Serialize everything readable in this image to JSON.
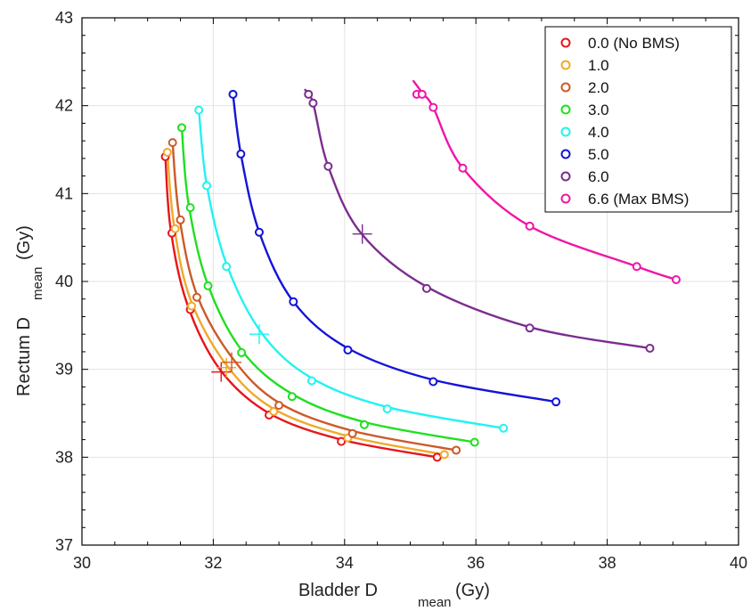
{
  "chart_data": {
    "type": "line",
    "xlabel": {
      "main": "Bladder D",
      "sub": "mean",
      "unit": "(Gy)"
    },
    "ylabel": {
      "main": "Rectum D",
      "sub": "mean",
      "unit": "(Gy)"
    },
    "xlim": [
      30,
      40
    ],
    "ylim": [
      37,
      43
    ],
    "xticks": [
      30,
      32,
      34,
      36,
      38,
      40
    ],
    "yticks": [
      37,
      38,
      39,
      40,
      41,
      42,
      43
    ],
    "xtick_labels": [
      "30",
      "32",
      "34",
      "36",
      "38",
      "40"
    ],
    "ytick_labels": [
      "37",
      "38",
      "39",
      "40",
      "41",
      "42",
      "43"
    ],
    "grid": true,
    "legend_position": "top-right",
    "series": [
      {
        "name": "0.0 (No BMS)",
        "color": "#e8141b",
        "points": [
          [
            31.27,
            41.42
          ],
          [
            31.37,
            40.55
          ],
          [
            31.65,
            39.68
          ],
          [
            32.85,
            38.48
          ],
          [
            33.95,
            38.18
          ],
          [
            35.41,
            38.0
          ]
        ],
        "curve": [
          [
            31.27,
            41.42
          ],
          [
            31.35,
            40.6
          ],
          [
            31.6,
            39.75
          ],
          [
            32.1,
            39.0
          ],
          [
            32.85,
            38.5
          ],
          [
            33.95,
            38.2
          ],
          [
            35.41,
            38.0
          ]
        ],
        "marker": [
          32.12,
          38.97
        ]
      },
      {
        "name": "1.0",
        "color": "#f0a92a",
        "points": [
          [
            31.3,
            41.47
          ],
          [
            31.42,
            40.6
          ],
          [
            31.67,
            39.72
          ],
          [
            32.92,
            38.52
          ],
          [
            34.05,
            38.22
          ],
          [
            35.52,
            38.03
          ]
        ],
        "curve": [
          [
            31.3,
            41.47
          ],
          [
            31.4,
            40.65
          ],
          [
            31.65,
            39.8
          ],
          [
            32.2,
            39.05
          ],
          [
            32.92,
            38.55
          ],
          [
            34.05,
            38.24
          ],
          [
            35.52,
            38.03
          ]
        ],
        "marker": [
          32.2,
          39.02
        ]
      },
      {
        "name": "2.0",
        "color": "#cc5a28",
        "points": [
          [
            31.38,
            41.58
          ],
          [
            31.5,
            40.7
          ],
          [
            31.75,
            39.82
          ],
          [
            33.0,
            38.59
          ],
          [
            34.12,
            38.27
          ],
          [
            35.7,
            38.08
          ]
        ],
        "curve": [
          [
            31.38,
            41.58
          ],
          [
            31.48,
            40.75
          ],
          [
            31.75,
            39.85
          ],
          [
            32.3,
            39.12
          ],
          [
            33.0,
            38.62
          ],
          [
            34.12,
            38.3
          ],
          [
            35.7,
            38.08
          ]
        ],
        "marker": [
          32.28,
          39.08
        ]
      },
      {
        "name": "3.0",
        "color": "#1fe01f",
        "points": [
          [
            31.52,
            41.75
          ],
          [
            31.65,
            40.84
          ],
          [
            31.92,
            39.95
          ],
          [
            32.43,
            39.19
          ],
          [
            33.2,
            38.69
          ],
          [
            34.3,
            38.37
          ],
          [
            35.98,
            38.17
          ]
        ],
        "curve": [
          [
            31.52,
            41.75
          ],
          [
            31.62,
            40.9
          ],
          [
            31.9,
            40.0
          ],
          [
            32.43,
            39.22
          ],
          [
            33.2,
            38.72
          ],
          [
            34.3,
            38.4
          ],
          [
            35.98,
            38.17
          ]
        ],
        "marker": null
      },
      {
        "name": "4.0",
        "color": "#22f2f2",
        "points": [
          [
            31.78,
            41.95
          ],
          [
            31.9,
            41.09
          ],
          [
            32.2,
            40.17
          ],
          [
            33.5,
            38.87
          ],
          [
            34.65,
            38.55
          ],
          [
            36.42,
            38.33
          ]
        ],
        "curve": [
          [
            31.78,
            41.95
          ],
          [
            31.9,
            41.1
          ],
          [
            32.2,
            40.2
          ],
          [
            32.75,
            39.4
          ],
          [
            33.5,
            38.9
          ],
          [
            34.65,
            38.57
          ],
          [
            36.42,
            38.33
          ]
        ],
        "marker": [
          32.7,
          39.4
        ]
      },
      {
        "name": "5.0",
        "color": "#1414d8",
        "points": [
          [
            32.3,
            42.13
          ],
          [
            32.42,
            41.45
          ],
          [
            32.7,
            40.56
          ],
          [
            33.22,
            39.77
          ],
          [
            34.05,
            39.22
          ],
          [
            35.35,
            38.86
          ],
          [
            37.22,
            38.63
          ]
        ],
        "curve": [
          [
            32.3,
            42.13
          ],
          [
            32.42,
            41.45
          ],
          [
            32.7,
            40.56
          ],
          [
            33.22,
            39.77
          ],
          [
            34.05,
            39.24
          ],
          [
            35.35,
            38.88
          ],
          [
            37.22,
            38.63
          ]
        ],
        "marker": null
      },
      {
        "name": "6.0",
        "color": "#7b2d8e",
        "points": [
          [
            33.45,
            42.13
          ],
          [
            33.52,
            42.03
          ],
          [
            33.75,
            41.31
          ],
          [
            35.25,
            39.92
          ],
          [
            36.82,
            39.47
          ],
          [
            38.65,
            39.24
          ]
        ],
        "curve": [
          [
            33.4,
            42.18
          ],
          [
            33.52,
            42.03
          ],
          [
            33.75,
            41.31
          ],
          [
            34.25,
            40.55
          ],
          [
            35.25,
            39.94
          ],
          [
            36.82,
            39.48
          ],
          [
            38.65,
            39.24
          ]
        ],
        "marker": [
          34.27,
          40.54
        ]
      },
      {
        "name": "6.6 (Max BMS)",
        "color": "#ee16a8",
        "points": [
          [
            35.1,
            42.13
          ],
          [
            35.18,
            42.13
          ],
          [
            35.35,
            41.98
          ],
          [
            35.8,
            41.29
          ],
          [
            36.82,
            40.63
          ],
          [
            38.45,
            40.17
          ],
          [
            39.05,
            40.02
          ]
        ],
        "curve": [
          [
            35.05,
            42.28
          ],
          [
            35.2,
            42.13
          ],
          [
            35.35,
            41.98
          ],
          [
            35.8,
            41.29
          ],
          [
            36.82,
            40.63
          ],
          [
            38.45,
            40.17
          ],
          [
            39.05,
            40.02
          ]
        ],
        "marker": null
      }
    ]
  }
}
